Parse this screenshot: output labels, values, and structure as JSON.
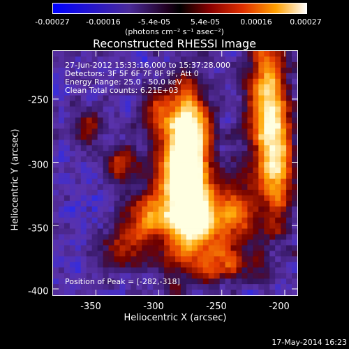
{
  "colorbar": {
    "tick_labels": [
      "-0.00027",
      "-0.00016",
      "-5.4e-05",
      "5.4e-05",
      "0.00016",
      "0.00027"
    ],
    "units": "(photons cm⁻² s⁻¹ asec⁻²)"
  },
  "info": {
    "time_range": "27-Jun-2012 15:33:16.000 to 15:37:28.000",
    "detectors": "Detectors: 3F 5F 6F 7F 8F 9F, Att 0",
    "energy": "Energy Range: 25.0 - 50.0 keV",
    "clean": "Clean    Total counts: 6.21E+03",
    "peak": "Position of Peak = [-282,-318]"
  },
  "footer": {
    "timestamp": "17-May-2014 16:23"
  },
  "chart_data": {
    "type": "heatmap",
    "title": "Reconstructed RHESSI Image",
    "xlabel": "Heliocentric X (arcsec)",
    "ylabel": "Heliocentric Y (arcsec)",
    "xlim": [
      -384,
      -190
    ],
    "ylim": [
      -405,
      -212
    ],
    "x_ticks": [
      -350,
      -300,
      -250,
      -200
    ],
    "y_ticks": [
      -250,
      -300,
      -350,
      -400
    ],
    "x_tick_labels": [
      "-350",
      "-300",
      "-250",
      "-200"
    ],
    "y_tick_labels": [
      "-250",
      "-300",
      "-350",
      "-400"
    ],
    "colorscale": {
      "min": -0.00027,
      "max": 0.00027,
      "colors": [
        "#1a1aff",
        "#6a2fa0",
        "#3a1060",
        "#9a0000",
        "#e84000",
        "#ffb000",
        "#ffffe0"
      ]
    },
    "peak": [
      -282,
      -318
    ],
    "grid": false
  }
}
